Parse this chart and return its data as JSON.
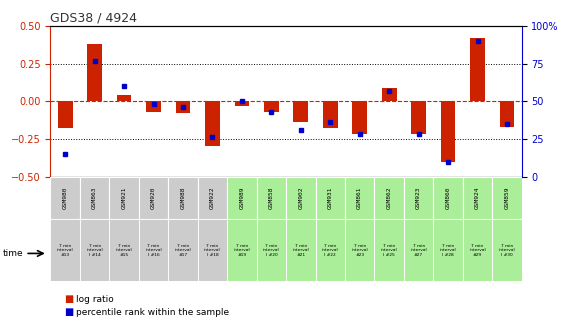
{
  "title": "GDS38 / 4924",
  "samples": [
    "GSM980",
    "GSM863",
    "GSM921",
    "GSM920",
    "GSM988",
    "GSM922",
    "GSM989",
    "GSM858",
    "GSM902",
    "GSM931",
    "GSM861",
    "GSM862",
    "GSM923",
    "GSM860",
    "GSM924",
    "GSM859"
  ],
  "log_ratio": [
    -0.18,
    0.38,
    0.04,
    -0.07,
    -0.08,
    -0.3,
    -0.03,
    -0.07,
    -0.14,
    -0.18,
    -0.22,
    0.09,
    -0.22,
    -0.4,
    0.42,
    -0.17
  ],
  "percentile": [
    15,
    77,
    60,
    48,
    46,
    26,
    50,
    43,
    31,
    36,
    28,
    57,
    28,
    10,
    90,
    35
  ],
  "time_labels": [
    "7 min\ninterval\n#13",
    "7 min\ninterval\nl #14",
    "7 min\ninterval\n#15",
    "7 min\ninterval\nl #16",
    "7 min\ninterval\n#17",
    "7 min\ninterval\nl #18",
    "7 min\ninterval\n#19",
    "7 min\ninterval\nl #20",
    "7 min\ninterval\n#21",
    "7 min\ninterval\nl #22",
    "7 min\ninterval\n#23",
    "7 min\ninterval\nl #25",
    "7 min\ninterval\n#27",
    "7 min\ninterval\nl #28",
    "7 min\ninterval\n#29",
    "7 min\ninterval\nl #30"
  ],
  "ylim_left": [
    -0.5,
    0.5
  ],
  "ylim_right": [
    0,
    100
  ],
  "yticks_left": [
    -0.5,
    -0.25,
    0,
    0.25,
    0.5
  ],
  "yticks_right": [
    0,
    25,
    50,
    75,
    100
  ],
  "bar_color": "#cc2200",
  "dot_color": "#0000cc",
  "left_axis_color": "#cc2200",
  "right_axis_color": "#0000cc",
  "green_bg_indices": [
    6,
    7,
    8,
    9,
    10,
    11,
    12,
    13,
    14,
    15
  ],
  "gray_bg_indices": [
    0,
    1,
    2,
    3,
    4,
    5
  ],
  "cell_green": "#aaee99",
  "cell_gray": "#cccccc",
  "plot_bg": "#ffffff"
}
